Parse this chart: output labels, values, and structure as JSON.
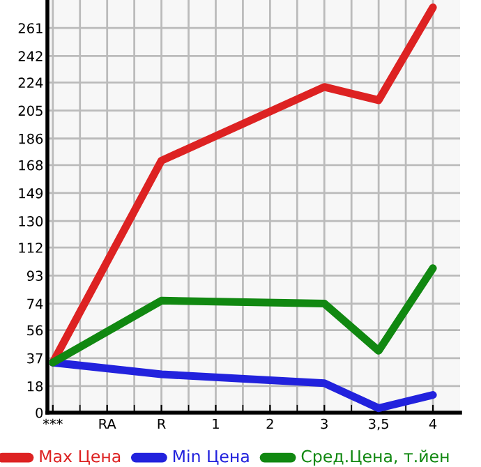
{
  "chart_data": {
    "type": "line",
    "categories": [
      "***",
      "RA",
      "R",
      "1",
      "2",
      "3",
      "3,5",
      "4"
    ],
    "series": [
      {
        "name": "Max Цена",
        "color": "#dd2222",
        "values": [
          34,
          null,
          171,
          null,
          null,
          221,
          212,
          275
        ]
      },
      {
        "name": "Min Цена",
        "color": "#2222dd",
        "values": [
          34,
          null,
          26,
          null,
          null,
          20,
          3,
          12
        ]
      },
      {
        "name": "Сред.Цена, т.йен",
        "color": "#118811",
        "values": [
          34,
          null,
          76,
          null,
          null,
          74,
          42,
          98
        ]
      }
    ],
    "ylim": [
      0,
      280
    ],
    "yticks": [
      0,
      18,
      37,
      56,
      74,
      93,
      112,
      130,
      149,
      168,
      186,
      205,
      224,
      242,
      261
    ],
    "grid": true,
    "legend": "bottom",
    "marker": "none",
    "line_style": "solid"
  }
}
